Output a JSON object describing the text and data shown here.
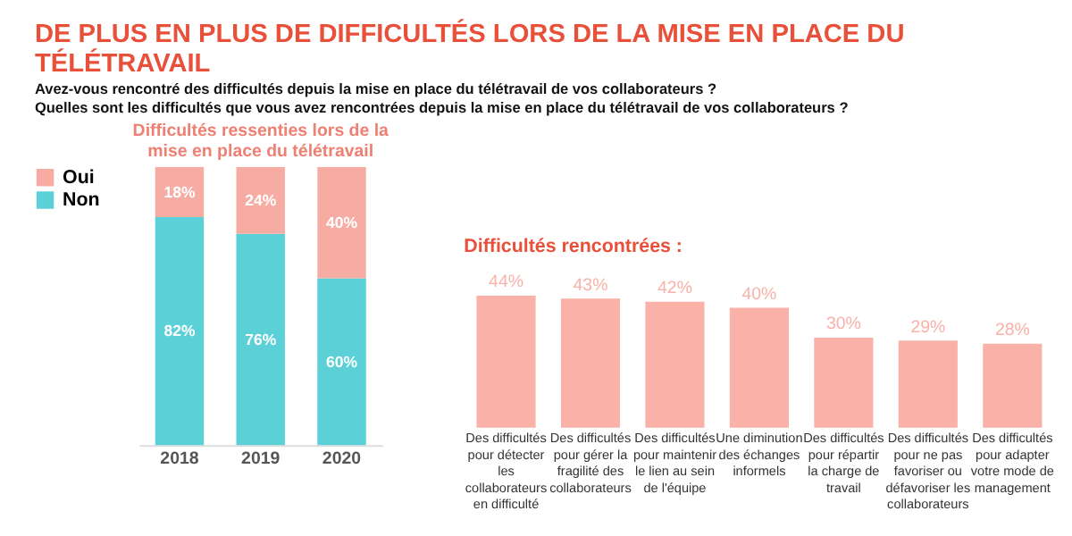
{
  "chart_data": [
    {
      "type": "bar",
      "title": "DE PLUS EN PLUS DE DIFFICULTÉS LORS DE LA MISE EN PLACE DU TÉLÉTRAVAIL",
      "subtitle": "Avez-vous rencontré des difficultés depuis la mise en place du télétravail de vos collaborateurs ?\nQuelles sont les difficultés que vous avez rencontrées depuis la mise en place du télétravail de vos collaborateurs ?",
      "annotations": [
        "Difficultés ressenties lors de la mise en place du télétravail"
      ],
      "stacked": true,
      "legend": "left",
      "categories": [
        "2018",
        "2019",
        "2020"
      ],
      "series": [
        {
          "name": "Non",
          "color": "#5bd0d6",
          "values": [
            82,
            76,
            60
          ],
          "value_labels": [
            "82%",
            "76%",
            "60%"
          ]
        },
        {
          "name": "Oui",
          "color": "#f7aca3",
          "values": [
            18,
            24,
            40
          ],
          "value_labels": [
            "18%",
            "24%",
            "40%"
          ]
        }
      ]
    },
    {
      "type": "bar",
      "title": "Difficultés rencontrées :",
      "categories": [
        "Des difficultés pour détecter les collaborateurs en difficulté",
        "Des difficultés pour gérer la fragilité des collaborateurs",
        "Des difficultés pour maintenir le lien au sein de l'équipe",
        "Une diminution des échanges informels",
        "Des difficultés pour répartir la charge de travail",
        "Des difficultés pour ne pas favoriser ou défavoriser les collaborateurs",
        "Des difficultés pour adapter votre mode de management"
      ],
      "values": [
        44,
        43,
        42,
        40,
        30,
        29,
        28
      ],
      "value_labels": [
        "44%",
        "43%",
        "42%",
        "40%",
        "30%",
        "29%",
        "28%"
      ],
      "color": "#f9b1a8"
    }
  ]
}
